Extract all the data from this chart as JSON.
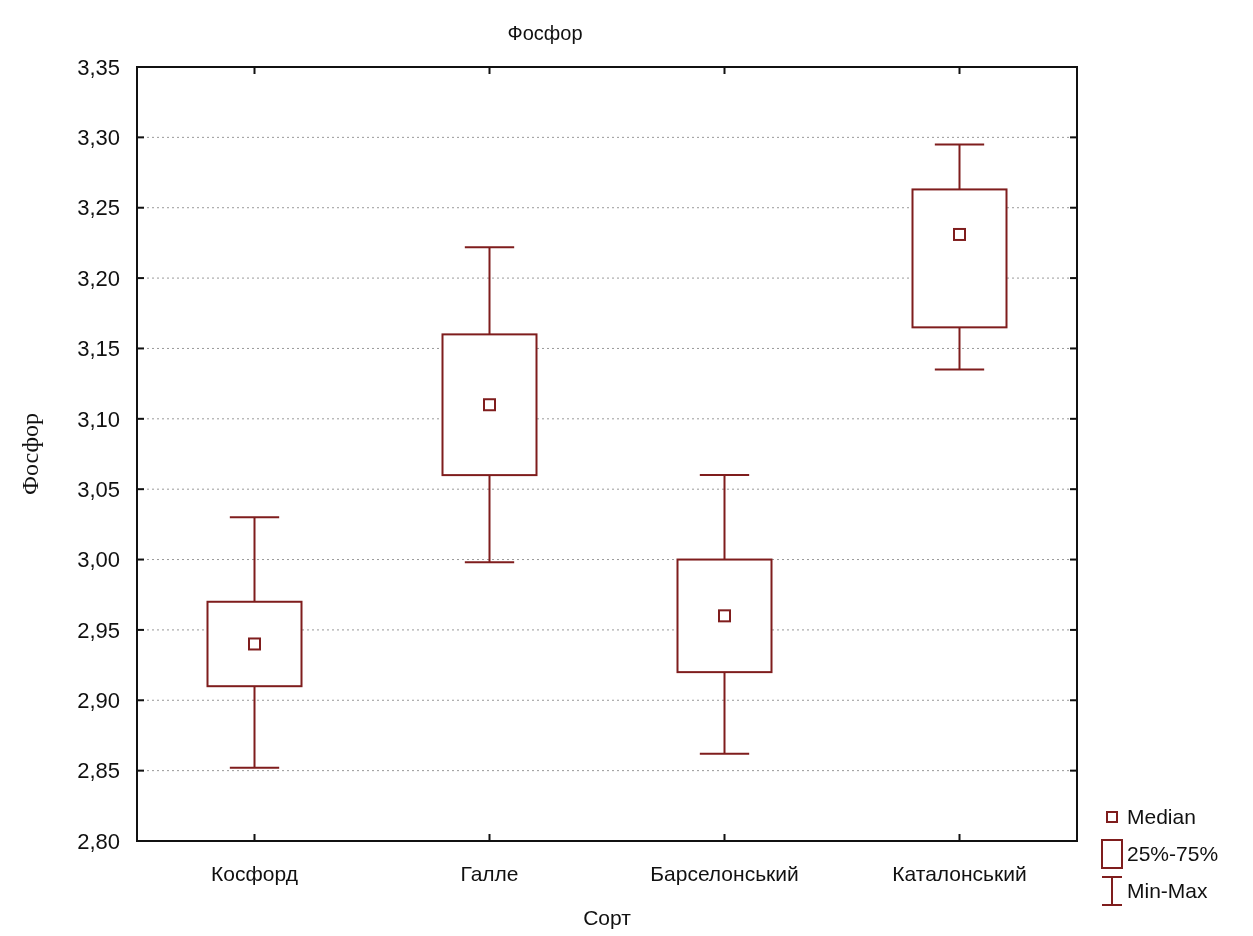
{
  "chart_data": {
    "type": "box",
    "title": "Фосфор",
    "xlabel": "Сорт",
    "ylabel": "Фосфор",
    "categories": [
      "Косфорд",
      "Галле",
      "Барселонський",
      "Каталонський"
    ],
    "boxes": [
      {
        "low": 2.852,
        "q1": 2.91,
        "median": 2.94,
        "q3": 2.97,
        "high": 3.03
      },
      {
        "low": 2.998,
        "q1": 3.06,
        "median": 3.11,
        "q3": 3.16,
        "high": 3.222
      },
      {
        "low": 2.862,
        "q1": 2.92,
        "median": 2.96,
        "q3": 3.0,
        "high": 3.06
      },
      {
        "low": 3.135,
        "q1": 3.165,
        "median": 3.231,
        "q3": 3.263,
        "high": 3.295
      }
    ],
    "color": "#7f1d1d",
    "marker": "square",
    "ylim": [
      2.8,
      3.35
    ],
    "yticks": [
      {
        "value": 2.8,
        "label": "2,80"
      },
      {
        "value": 2.85,
        "label": "2,85"
      },
      {
        "value": 2.9,
        "label": "2,90"
      },
      {
        "value": 2.95,
        "label": "2,95"
      },
      {
        "value": 3.0,
        "label": "3,00"
      },
      {
        "value": 3.05,
        "label": "3,05"
      },
      {
        "value": 3.1,
        "label": "3,10"
      },
      {
        "value": 3.15,
        "label": "3,15"
      },
      {
        "value": 3.2,
        "label": "3,20"
      },
      {
        "value": 3.25,
        "label": "3,25"
      },
      {
        "value": 3.3,
        "label": "3,30"
      },
      {
        "value": 3.35,
        "label": "3,35"
      }
    ],
    "grid": "y",
    "annotations": [
      "Median",
      "25%-75%",
      "Min-Max"
    ]
  }
}
